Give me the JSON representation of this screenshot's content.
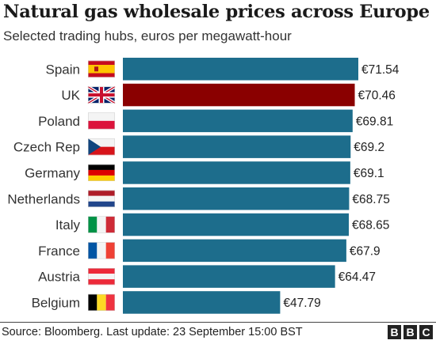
{
  "title": "Natural gas wholesale prices across Europe",
  "subtitle": "Selected trading hubs, euros per megawatt-hour",
  "source": "Source: Bloomberg. Last update: 23 September 15:00 BST",
  "logo": {
    "letters": [
      "B",
      "B",
      "C"
    ]
  },
  "colors": {
    "bar": "#1d6d8c",
    "highlight": "#8a0000"
  },
  "chart_data": {
    "type": "bar",
    "orientation": "horizontal",
    "title": "Natural gas wholesale prices across Europe",
    "subtitle": "Selected trading hubs, euros per megawatt-hour",
    "categories": [
      "Spain",
      "UK",
      "Poland",
      "Czech Rep",
      "Germany",
      "Netherlands",
      "Italy",
      "France",
      "Austria",
      "Belgium"
    ],
    "values": [
      71.54,
      70.46,
      69.81,
      69.2,
      69.1,
      68.75,
      68.65,
      67.9,
      64.47,
      47.79
    ],
    "labels": [
      "€71.54",
      "€70.46",
      "€69.81",
      "€69.2",
      "€69.1",
      "€68.75",
      "€68.65",
      "€67.9",
      "€64.47",
      "€47.79"
    ],
    "highlight": "UK",
    "flags": [
      "spain-flag",
      "uk-flag",
      "poland-flag",
      "czech-flag",
      "germany-flag",
      "netherlands-flag",
      "italy-flag",
      "france-flag",
      "austria-flag",
      "belgium-flag"
    ],
    "xlim": [
      0,
      71.54
    ],
    "grid": false,
    "legend": "none"
  }
}
